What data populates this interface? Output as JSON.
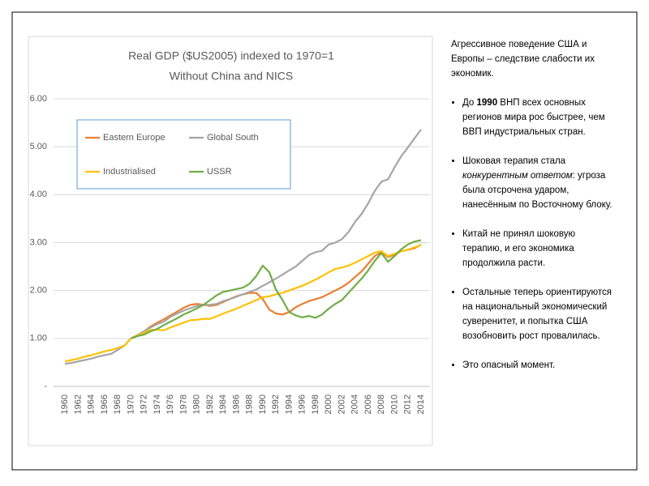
{
  "chart_data": {
    "type": "line",
    "title": "Real GDP ($US2005) indexed to 1970=1",
    "subtitle": "Without China and NICS",
    "x": [
      1960,
      1961,
      1962,
      1963,
      1964,
      1965,
      1966,
      1967,
      1968,
      1969,
      1970,
      1971,
      1972,
      1973,
      1974,
      1975,
      1976,
      1977,
      1978,
      1979,
      1980,
      1981,
      1982,
      1983,
      1984,
      1985,
      1986,
      1987,
      1988,
      1989,
      1990,
      1991,
      1992,
      1993,
      1994,
      1995,
      1996,
      1997,
      1998,
      1999,
      2000,
      2001,
      2002,
      2003,
      2004,
      2005,
      2006,
      2007,
      2008,
      2009,
      2010,
      2011,
      2012,
      2013,
      2014
    ],
    "series": [
      {
        "name": "Eastern Europe",
        "color": "#ed7d31",
        "values": [
          null,
          null,
          null,
          null,
          null,
          null,
          null,
          null,
          null,
          null,
          1.0,
          1.07,
          1.15,
          1.25,
          1.33,
          1.4,
          1.48,
          1.56,
          1.64,
          1.7,
          1.72,
          1.7,
          1.68,
          1.7,
          1.76,
          1.82,
          1.88,
          1.92,
          1.95,
          1.95,
          1.82,
          1.6,
          1.52,
          1.5,
          1.55,
          1.65,
          1.72,
          1.78,
          1.82,
          1.86,
          1.93,
          2.0,
          2.07,
          2.16,
          2.28,
          2.4,
          2.56,
          2.72,
          2.8,
          2.7,
          2.75,
          2.82,
          2.85,
          2.88,
          2.96
        ]
      },
      {
        "name": "Global South",
        "color": "#a5a5a5",
        "values": [
          0.47,
          0.49,
          0.52,
          0.55,
          0.58,
          0.62,
          0.65,
          0.68,
          0.76,
          0.85,
          1.0,
          1.07,
          1.15,
          1.23,
          1.3,
          1.35,
          1.45,
          1.52,
          1.58,
          1.63,
          1.68,
          1.7,
          1.7,
          1.72,
          1.78,
          1.82,
          1.87,
          1.92,
          1.97,
          2.02,
          2.1,
          2.17,
          2.25,
          2.33,
          2.42,
          2.5,
          2.62,
          2.74,
          2.8,
          2.83,
          2.96,
          3.0,
          3.07,
          3.22,
          3.43,
          3.6,
          3.82,
          4.08,
          4.27,
          4.32,
          4.57,
          4.8,
          4.98,
          5.17,
          5.36
        ]
      },
      {
        "name": "Industrialised",
        "color": "#ffc000",
        "values": [
          0.52,
          0.55,
          0.58,
          0.62,
          0.65,
          0.69,
          0.73,
          0.76,
          0.8,
          0.85,
          1.0,
          1.06,
          1.12,
          1.18,
          1.18,
          1.17,
          1.23,
          1.28,
          1.33,
          1.38,
          1.39,
          1.41,
          1.41,
          1.46,
          1.52,
          1.57,
          1.62,
          1.68,
          1.74,
          1.8,
          1.86,
          1.88,
          1.92,
          1.95,
          2.0,
          2.05,
          2.1,
          2.16,
          2.23,
          2.3,
          2.38,
          2.45,
          2.48,
          2.52,
          2.58,
          2.65,
          2.72,
          2.79,
          2.82,
          2.72,
          2.77,
          2.82,
          2.85,
          2.9,
          2.95
        ]
      },
      {
        "name": "USSR",
        "color": "#70ad47",
        "values": [
          null,
          null,
          null,
          null,
          null,
          null,
          null,
          null,
          null,
          null,
          1.0,
          1.05,
          1.08,
          1.15,
          1.2,
          1.28,
          1.35,
          1.42,
          1.5,
          1.56,
          1.63,
          1.7,
          1.8,
          1.9,
          1.97,
          2.0,
          2.03,
          2.06,
          2.14,
          2.3,
          2.52,
          2.38,
          2.02,
          1.8,
          1.55,
          1.48,
          1.44,
          1.47,
          1.43,
          1.5,
          1.62,
          1.72,
          1.8,
          1.95,
          2.1,
          2.25,
          2.42,
          2.62,
          2.78,
          2.6,
          2.72,
          2.86,
          2.96,
          3.02,
          3.05
        ]
      }
    ],
    "xlim": [
      1959,
      2015
    ],
    "xticks": [
      1960,
      1962,
      1964,
      1966,
      1968,
      1970,
      1972,
      1974,
      1976,
      1978,
      1980,
      1982,
      1984,
      1986,
      1988,
      1990,
      1992,
      1994,
      1996,
      1998,
      2000,
      2002,
      2004,
      2006,
      2008,
      2010,
      2012,
      2014
    ],
    "ylim": [
      0,
      6
    ],
    "yticks": [
      {
        "value": 0,
        "label": "-"
      },
      {
        "value": 1,
        "label": "1.00"
      },
      {
        "value": 2,
        "label": "2.00"
      },
      {
        "value": 3,
        "label": "3.00"
      },
      {
        "value": 4,
        "label": "4.00"
      },
      {
        "value": 5,
        "label": "5.00"
      },
      {
        "value": 6,
        "label": "6.00"
      }
    ],
    "grid": true,
    "legend": "top-left"
  },
  "text_panel": {
    "intro": "Агрессивное поведение США и Европы – следствие слабости их экономик.",
    "bullets": [
      [
        "До ",
        "1990",
        " ВНП всех основных регионов мира рос быстрее, чем ВВП индустриальных стран."
      ],
      [
        "Шоковая терапия стала ",
        "конкурентным ответом",
        ": угроза была отсрочена ударом, нанесённым по Восточному блоку."
      ],
      [
        "Китай не принял шоковую терапию, и его экономика продолжила расти."
      ],
      [
        "Остальные теперь ориентируются на национальный экономический суверенитет, и попытка США возобновить рост провалилась."
      ],
      [
        "Это опасный момент."
      ]
    ]
  }
}
